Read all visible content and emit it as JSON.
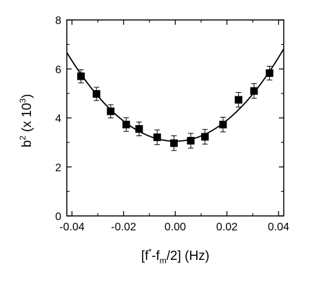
{
  "chart_data": {
    "type": "scatter",
    "title": "",
    "xlabel": {
      "open": "[f",
      "star": "*",
      "mid": "-f",
      "sub": "m",
      "close": "/2] (Hz)"
    },
    "ylabel": {
      "base": "b",
      "sup": "2",
      "mid": " (x 10",
      "sup2": "3",
      "close": ")"
    },
    "xlim": [
      -0.042,
      0.042
    ],
    "ylim": [
      0,
      8
    ],
    "xticks": [
      -0.04,
      -0.02,
      0.0,
      0.02,
      0.04
    ],
    "xtick_labels": [
      "-0.04",
      "-0.02",
      "0.00",
      "0.02",
      "0.04"
    ],
    "yticks": [
      0,
      2,
      4,
      6,
      8
    ],
    "ytick_labels": [
      "0",
      "2",
      "4",
      "6",
      "8"
    ],
    "grid": false,
    "series": [
      {
        "marker": "filled-square",
        "color": "#000000",
        "x": [
          -0.0365,
          -0.0305,
          -0.025,
          -0.019,
          -0.014,
          -0.007,
          -0.0005,
          0.006,
          0.0115,
          0.0185,
          0.0245,
          0.0305,
          0.0365
        ],
        "y": [
          5.7,
          4.98,
          4.27,
          3.73,
          3.55,
          3.21,
          2.97,
          3.07,
          3.23,
          3.73,
          4.74,
          5.1,
          5.83
        ],
        "yerr": [
          0.27,
          0.27,
          0.27,
          0.28,
          0.28,
          0.3,
          0.3,
          0.3,
          0.3,
          0.3,
          0.3,
          0.3,
          0.28
        ]
      }
    ],
    "fit_curve": {
      "type": "parabola",
      "vertex_x": 0.0,
      "vertex_y": 3.05,
      "x_range": [
        -0.042,
        0.042
      ],
      "y_at_left_edge": 6.67,
      "y_at_right_edge": 6.82,
      "color": "#000000"
    }
  }
}
